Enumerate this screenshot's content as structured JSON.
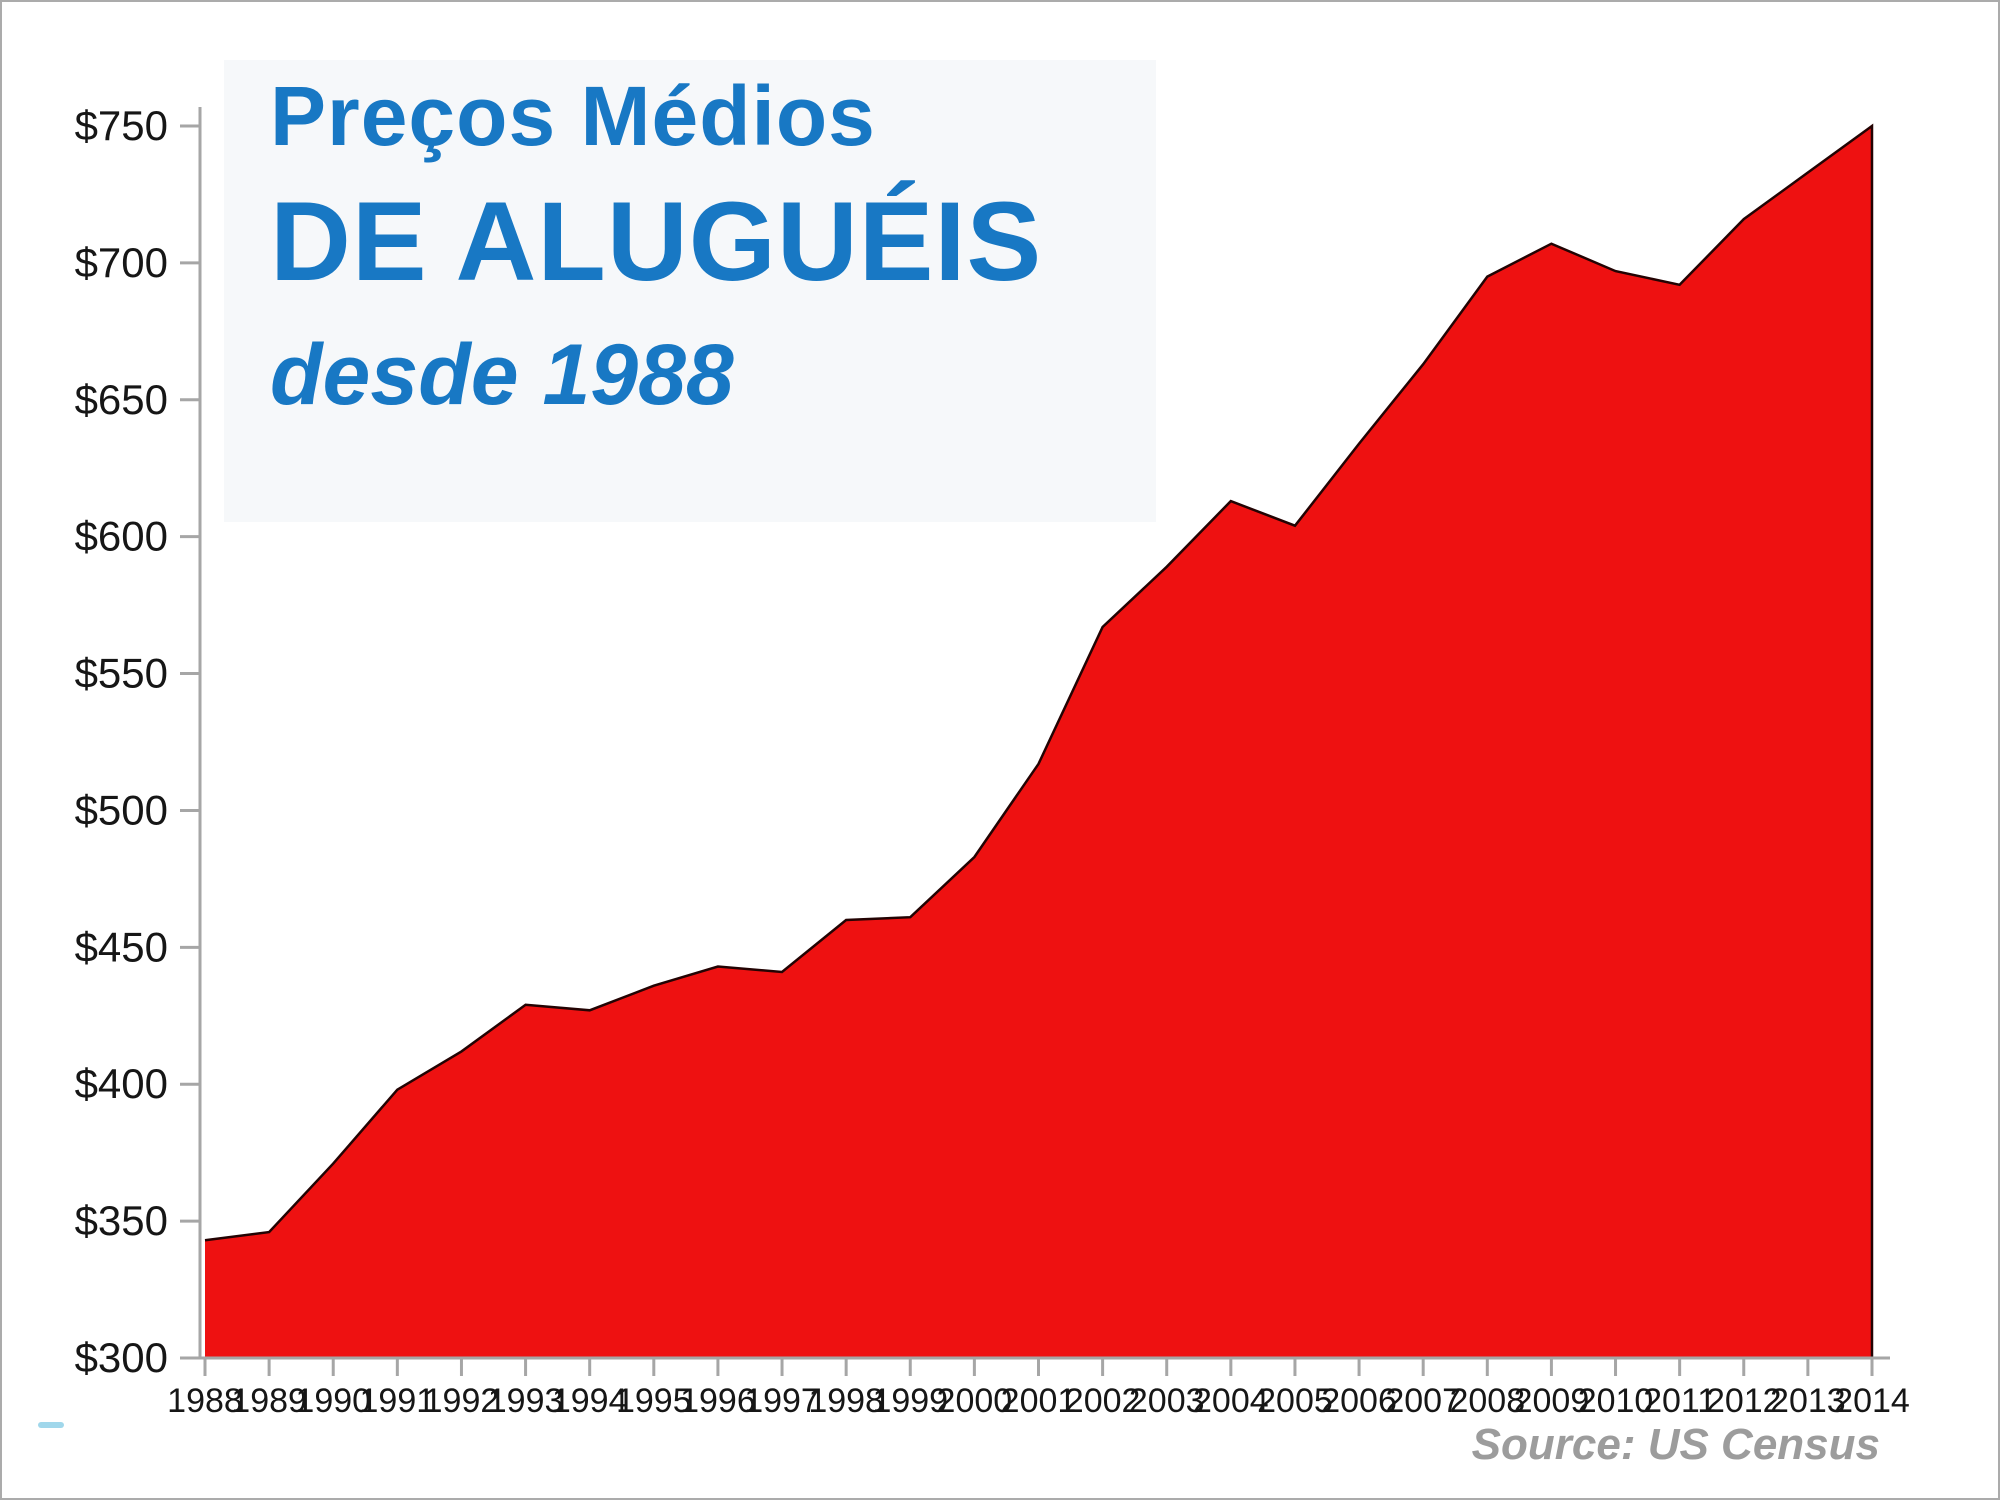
{
  "title": {
    "line1": "Preços Médios",
    "line2": "DE ALUGUÉIS",
    "line3": "desde 1988",
    "color": "#1878c4"
  },
  "source": "Source: US Census",
  "chart_data": {
    "type": "area",
    "x": [
      1988,
      1989,
      1990,
      1991,
      1992,
      1993,
      1994,
      1995,
      1996,
      1997,
      1998,
      1999,
      2000,
      2001,
      2002,
      2003,
      2004,
      2005,
      2006,
      2007,
      2008,
      2009,
      2010,
      2011,
      2012,
      2013,
      2014
    ],
    "values": [
      343,
      346,
      371,
      398,
      412,
      429,
      427,
      436,
      443,
      441,
      460,
      461,
      483,
      517,
      567,
      589,
      613,
      604,
      634,
      663,
      695,
      707,
      697,
      692,
      716,
      733,
      750
    ],
    "title": "Preços Médios de Aluguéis desde 1988",
    "xlabel": "",
    "ylabel": "",
    "ylim": [
      300,
      750
    ],
    "ytick_step": 50,
    "ytick_prefix": "$",
    "grid": false,
    "legend": false,
    "fill_color": "#ee1111",
    "outline_color": "#230303",
    "axis_color": "#a6a6a6"
  }
}
